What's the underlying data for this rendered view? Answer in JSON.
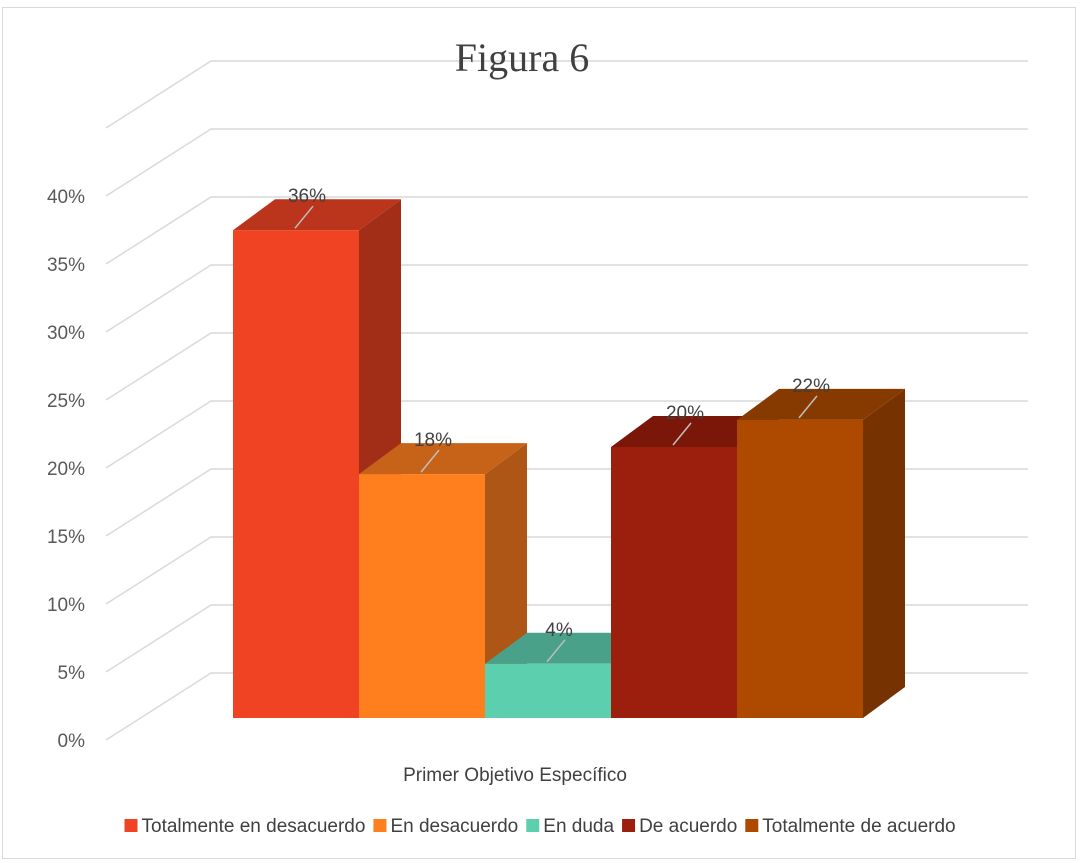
{
  "chart_data": {
    "type": "bar",
    "title": "Figura 6",
    "categories": [
      "Primer Objetivo Específico"
    ],
    "series": [
      {
        "name": "Totalmente en desacuerdo",
        "values": [
          36
        ],
        "color": "#f04324",
        "label": "36%"
      },
      {
        "name": "En desacuerdo",
        "values": [
          18
        ],
        "color": "#ff7f1f",
        "label": "18%"
      },
      {
        "name": "En duda",
        "values": [
          4
        ],
        "color": "#5ccfae",
        "label": "4%"
      },
      {
        "name": "De acuerdo",
        "values": [
          20
        ],
        "color": "#9c1e0c",
        "label": "20%"
      },
      {
        "name": "Totalmente de acuerdo",
        "values": [
          22
        ],
        "color": "#ad4a00",
        "label": "22%"
      }
    ],
    "yticks": [
      "0%",
      "5%",
      "10%",
      "15%",
      "20%",
      "25%",
      "30%",
      "35%",
      "40%"
    ],
    "ylim": [
      0,
      40
    ],
    "grid": true,
    "legend_position": "bottom",
    "style": "3d-clustered-column"
  }
}
